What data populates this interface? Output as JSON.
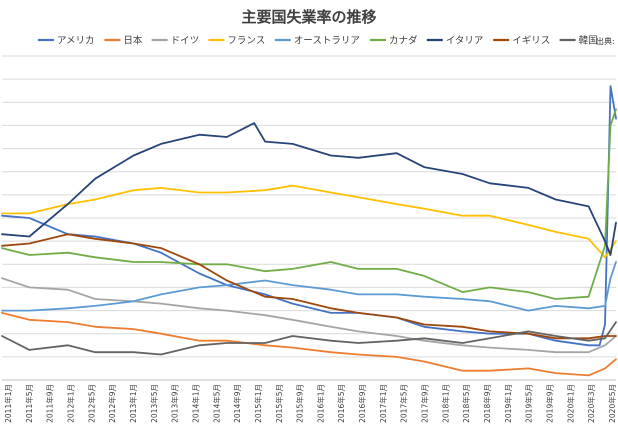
{
  "chart_data": {
    "type": "line",
    "title": "主要国失業率の推移",
    "source_label": "出典:",
    "grid": true,
    "legend_position": "top",
    "ylim": [
      2,
      16
    ],
    "x_start": "2011年1月",
    "x_end": "2020年5月",
    "x_tick_labels": [
      "2011年1月",
      "2011年5月",
      "2011年9月",
      "2012年1月",
      "2012年5月",
      "2012年9月",
      "2013年1月",
      "2013年5月",
      "2013年9月",
      "2014年1月",
      "2014年5月",
      "2014年9月",
      "2015年1月",
      "2015年5月",
      "2015年9月",
      "2016年1月",
      "2016年5月",
      "2016年9月",
      "2017年1月",
      "2017年5月",
      "2017年9月",
      "2018年1月",
      "2018年5月",
      "2018年9月",
      "2019年1月",
      "2019年5月",
      "2019年9月",
      "2020年1月",
      "2020年3月",
      "2020年5月"
    ],
    "series": [
      {
        "name": "アメリカ",
        "color": "#4472c4",
        "points": [
          [
            "2011-01",
            9.1
          ],
          [
            "2011-06",
            9.0
          ],
          [
            "2012-01",
            8.3
          ],
          [
            "2012-06",
            8.2
          ],
          [
            "2013-01",
            7.9
          ],
          [
            "2013-06",
            7.5
          ],
          [
            "2014-01",
            6.6
          ],
          [
            "2014-06",
            6.1
          ],
          [
            "2015-01",
            5.7
          ],
          [
            "2015-06",
            5.3
          ],
          [
            "2016-01",
            4.9
          ],
          [
            "2016-06",
            4.9
          ],
          [
            "2017-01",
            4.7
          ],
          [
            "2017-06",
            4.3
          ],
          [
            "2018-01",
            4.1
          ],
          [
            "2018-06",
            4.0
          ],
          [
            "2019-01",
            4.0
          ],
          [
            "2019-06",
            3.7
          ],
          [
            "2019-12",
            3.5
          ],
          [
            "2020-02",
            3.5
          ],
          [
            "2020-03",
            4.4
          ],
          [
            "2020-04",
            14.7
          ],
          [
            "2020-05",
            13.3
          ]
        ]
      },
      {
        "name": "日本",
        "color": "#ed7d31",
        "points": [
          [
            "2011-01",
            4.9
          ],
          [
            "2011-06",
            4.6
          ],
          [
            "2012-01",
            4.5
          ],
          [
            "2012-06",
            4.3
          ],
          [
            "2013-01",
            4.2
          ],
          [
            "2013-06",
            4.0
          ],
          [
            "2014-01",
            3.7
          ],
          [
            "2014-06",
            3.7
          ],
          [
            "2015-01",
            3.5
          ],
          [
            "2015-06",
            3.4
          ],
          [
            "2016-01",
            3.2
          ],
          [
            "2016-06",
            3.1
          ],
          [
            "2017-01",
            3.0
          ],
          [
            "2017-06",
            2.8
          ],
          [
            "2018-01",
            2.4
          ],
          [
            "2018-06",
            2.4
          ],
          [
            "2019-01",
            2.5
          ],
          [
            "2019-06",
            2.3
          ],
          [
            "2019-12",
            2.2
          ],
          [
            "2020-03",
            2.5
          ],
          [
            "2020-05",
            2.9
          ]
        ]
      },
      {
        "name": "ドイツ",
        "color": "#a5a5a5",
        "points": [
          [
            "2011-01",
            6.4
          ],
          [
            "2011-06",
            6.0
          ],
          [
            "2012-01",
            5.9
          ],
          [
            "2012-06",
            5.5
          ],
          [
            "2013-01",
            5.4
          ],
          [
            "2013-06",
            5.3
          ],
          [
            "2014-01",
            5.1
          ],
          [
            "2014-06",
            5.0
          ],
          [
            "2015-01",
            4.8
          ],
          [
            "2015-06",
            4.6
          ],
          [
            "2016-01",
            4.3
          ],
          [
            "2016-06",
            4.1
          ],
          [
            "2017-01",
            3.9
          ],
          [
            "2017-06",
            3.7
          ],
          [
            "2018-01",
            3.5
          ],
          [
            "2018-06",
            3.4
          ],
          [
            "2019-01",
            3.3
          ],
          [
            "2019-06",
            3.2
          ],
          [
            "2019-12",
            3.2
          ],
          [
            "2020-03",
            3.5
          ],
          [
            "2020-05",
            3.9
          ]
        ]
      },
      {
        "name": "フランス",
        "color": "#ffc000",
        "points": [
          [
            "2011-01",
            9.2
          ],
          [
            "2011-06",
            9.2
          ],
          [
            "2012-01",
            9.6
          ],
          [
            "2012-06",
            9.8
          ],
          [
            "2013-01",
            10.2
          ],
          [
            "2013-06",
            10.3
          ],
          [
            "2014-01",
            10.1
          ],
          [
            "2014-06",
            10.1
          ],
          [
            "2015-01",
            10.2
          ],
          [
            "2015-06",
            10.4
          ],
          [
            "2016-01",
            10.1
          ],
          [
            "2016-06",
            9.9
          ],
          [
            "2017-01",
            9.6
          ],
          [
            "2017-06",
            9.4
          ],
          [
            "2018-01",
            9.1
          ],
          [
            "2018-06",
            9.1
          ],
          [
            "2019-01",
            8.7
          ],
          [
            "2019-06",
            8.4
          ],
          [
            "2019-12",
            8.1
          ],
          [
            "2020-03",
            7.3
          ],
          [
            "2020-05",
            8.0
          ]
        ]
      },
      {
        "name": "オーストラリア",
        "color": "#5b9bd5",
        "points": [
          [
            "2011-01",
            5.0
          ],
          [
            "2011-06",
            5.0
          ],
          [
            "2012-01",
            5.1
          ],
          [
            "2012-06",
            5.2
          ],
          [
            "2013-01",
            5.4
          ],
          [
            "2013-06",
            5.7
          ],
          [
            "2014-01",
            6.0
          ],
          [
            "2014-06",
            6.1
          ],
          [
            "2015-01",
            6.3
          ],
          [
            "2015-06",
            6.1
          ],
          [
            "2016-01",
            5.9
          ],
          [
            "2016-06",
            5.7
          ],
          [
            "2017-01",
            5.7
          ],
          [
            "2017-06",
            5.6
          ],
          [
            "2018-01",
            5.5
          ],
          [
            "2018-06",
            5.4
          ],
          [
            "2019-01",
            5.0
          ],
          [
            "2019-06",
            5.2
          ],
          [
            "2019-12",
            5.1
          ],
          [
            "2020-03",
            5.2
          ],
          [
            "2020-04",
            6.4
          ],
          [
            "2020-05",
            7.1
          ]
        ]
      },
      {
        "name": "カナダ",
        "color": "#70ad47",
        "points": [
          [
            "2011-01",
            7.7
          ],
          [
            "2011-06",
            7.4
          ],
          [
            "2012-01",
            7.5
          ],
          [
            "2012-06",
            7.3
          ],
          [
            "2013-01",
            7.1
          ],
          [
            "2013-06",
            7.1
          ],
          [
            "2014-01",
            7.0
          ],
          [
            "2014-06",
            7.0
          ],
          [
            "2015-01",
            6.7
          ],
          [
            "2015-06",
            6.8
          ],
          [
            "2016-01",
            7.1
          ],
          [
            "2016-06",
            6.8
          ],
          [
            "2017-01",
            6.8
          ],
          [
            "2017-06",
            6.5
          ],
          [
            "2018-01",
            5.8
          ],
          [
            "2018-06",
            6.0
          ],
          [
            "2019-01",
            5.8
          ],
          [
            "2019-06",
            5.5
          ],
          [
            "2019-12",
            5.6
          ],
          [
            "2020-03",
            7.8
          ],
          [
            "2020-04",
            13.0
          ],
          [
            "2020-05",
            13.7
          ]
        ]
      },
      {
        "name": "イタリア",
        "color": "#264478",
        "points": [
          [
            "2011-01",
            8.3
          ],
          [
            "2011-06",
            8.2
          ],
          [
            "2012-01",
            9.6
          ],
          [
            "2012-06",
            10.7
          ],
          [
            "2013-01",
            11.7
          ],
          [
            "2013-06",
            12.2
          ],
          [
            "2014-01",
            12.6
          ],
          [
            "2014-06",
            12.5
          ],
          [
            "2014-11",
            13.1
          ],
          [
            "2015-01",
            12.3
          ],
          [
            "2015-06",
            12.2
          ],
          [
            "2016-01",
            11.7
          ],
          [
            "2016-06",
            11.6
          ],
          [
            "2017-01",
            11.8
          ],
          [
            "2017-06",
            11.2
          ],
          [
            "2018-01",
            10.9
          ],
          [
            "2018-06",
            10.5
          ],
          [
            "2019-01",
            10.3
          ],
          [
            "2019-06",
            9.8
          ],
          [
            "2019-12",
            9.5
          ],
          [
            "2020-03",
            8.0
          ],
          [
            "2020-04",
            7.4
          ],
          [
            "2020-05",
            8.8
          ]
        ]
      },
      {
        "name": "イギリス",
        "color": "#9e480e",
        "points": [
          [
            "2011-01",
            7.8
          ],
          [
            "2011-06",
            7.9
          ],
          [
            "2012-01",
            8.3
          ],
          [
            "2012-06",
            8.1
          ],
          [
            "2013-01",
            7.9
          ],
          [
            "2013-06",
            7.7
          ],
          [
            "2014-01",
            7.0
          ],
          [
            "2014-06",
            6.3
          ],
          [
            "2015-01",
            5.6
          ],
          [
            "2015-06",
            5.5
          ],
          [
            "2016-01",
            5.1
          ],
          [
            "2016-06",
            4.9
          ],
          [
            "2017-01",
            4.7
          ],
          [
            "2017-06",
            4.4
          ],
          [
            "2018-01",
            4.3
          ],
          [
            "2018-06",
            4.1
          ],
          [
            "2019-01",
            4.0
          ],
          [
            "2019-06",
            3.8
          ],
          [
            "2019-12",
            3.8
          ],
          [
            "2020-03",
            3.9
          ],
          [
            "2020-05",
            3.9
          ]
        ]
      },
      {
        "name": "韓国",
        "color": "#636363",
        "points": [
          [
            "2011-01",
            3.9
          ],
          [
            "2011-06",
            3.3
          ],
          [
            "2012-01",
            3.5
          ],
          [
            "2012-06",
            3.2
          ],
          [
            "2013-01",
            3.2
          ],
          [
            "2013-06",
            3.1
          ],
          [
            "2014-01",
            3.5
          ],
          [
            "2014-06",
            3.6
          ],
          [
            "2015-01",
            3.6
          ],
          [
            "2015-06",
            3.9
          ],
          [
            "2016-01",
            3.7
          ],
          [
            "2016-06",
            3.6
          ],
          [
            "2017-01",
            3.7
          ],
          [
            "2017-06",
            3.8
          ],
          [
            "2018-01",
            3.6
          ],
          [
            "2018-06",
            3.8
          ],
          [
            "2019-01",
            4.1
          ],
          [
            "2019-06",
            3.9
          ],
          [
            "2019-12",
            3.7
          ],
          [
            "2020-03",
            3.8
          ],
          [
            "2020-05",
            4.5
          ]
        ]
      }
    ]
  }
}
